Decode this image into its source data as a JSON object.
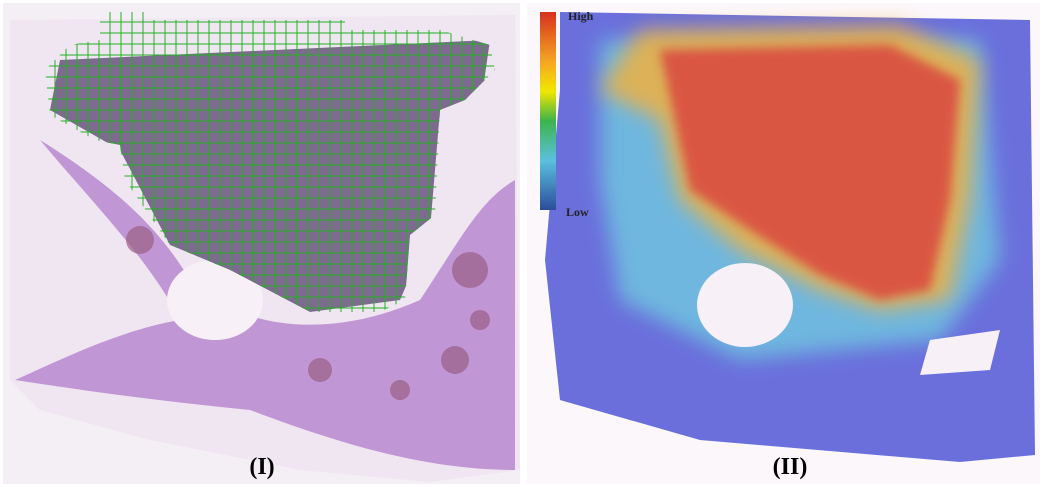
{
  "panels": [
    {
      "label": "(I)"
    },
    {
      "label": "(II)",
      "colorbar": {
        "high": "High",
        "low": "Low"
      }
    }
  ]
}
